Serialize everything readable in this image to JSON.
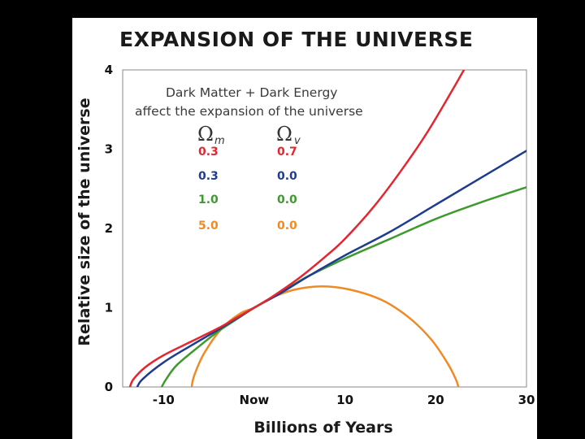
{
  "chart_data": {
    "type": "line",
    "title": "Expansion of the Universe",
    "title_display": "EXPANSION OF THE UNIVERSE",
    "xlabel": "Billions of Years",
    "ylabel": "Relative size of the universe",
    "xlim": [
      -14.5,
      30
    ],
    "ylim": [
      0,
      4
    ],
    "x_ticks": [
      {
        "value": -10,
        "label": "-10"
      },
      {
        "value": 0,
        "label": "Now"
      },
      {
        "value": 10,
        "label": "10"
      },
      {
        "value": 20,
        "label": "20"
      },
      {
        "value": 30,
        "label": "30"
      }
    ],
    "y_ticks": [
      {
        "value": 0,
        "label": "0"
      },
      {
        "value": 1,
        "label": "1"
      },
      {
        "value": 2,
        "label": "2"
      },
      {
        "value": 3,
        "label": "3"
      },
      {
        "value": 4,
        "label": "4"
      }
    ],
    "annotation": [
      "Dark Matter + Dark Energy",
      "affect the expansion of the universe"
    ],
    "legend_headers": [
      {
        "symbol": "Ω",
        "subscript": "m"
      },
      {
        "symbol": "Ω",
        "subscript": "v"
      }
    ],
    "series": [
      {
        "name": "0.3 / 0.7",
        "omega_m": "0.3",
        "omega_v": "0.7",
        "color": "#e3262f",
        "points": [
          [
            -13.7,
            0
          ],
          [
            -13.3,
            0.1
          ],
          [
            -12,
            0.25
          ],
          [
            -10,
            0.4
          ],
          [
            -7,
            0.57
          ],
          [
            -4,
            0.74
          ],
          [
            -2,
            0.87
          ],
          [
            0,
            1
          ],
          [
            2,
            1.14
          ],
          [
            5,
            1.38
          ],
          [
            8,
            1.66
          ],
          [
            10,
            1.87
          ],
          [
            13,
            2.25
          ],
          [
            16,
            2.7
          ],
          [
            19,
            3.2
          ],
          [
            22,
            3.78
          ],
          [
            23.5,
            4.08
          ]
        ]
      },
      {
        "name": "0.3 / 0.0",
        "omega_m": "0.3",
        "omega_v": "0.0",
        "color": "#1f3d8f",
        "points": [
          [
            -12.9,
            0
          ],
          [
            -12.3,
            0.1
          ],
          [
            -10,
            0.31
          ],
          [
            -7,
            0.52
          ],
          [
            -4,
            0.72
          ],
          [
            -2,
            0.86
          ],
          [
            0,
            1
          ],
          [
            3,
            1.19
          ],
          [
            6,
            1.4
          ],
          [
            10,
            1.66
          ],
          [
            15,
            1.96
          ],
          [
            20,
            2.3
          ],
          [
            25,
            2.64
          ],
          [
            30,
            2.98
          ]
        ]
      },
      {
        "name": "1.0 / 0.0",
        "omega_m": "1.0",
        "omega_v": "0.0",
        "color": "#3e9a2e",
        "points": [
          [
            -10.2,
            0
          ],
          [
            -9.7,
            0.1
          ],
          [
            -8.5,
            0.28
          ],
          [
            -6,
            0.52
          ],
          [
            -4,
            0.7
          ],
          [
            -2,
            0.85
          ],
          [
            0,
            1
          ],
          [
            3,
            1.2
          ],
          [
            6,
            1.4
          ],
          [
            10,
            1.62
          ],
          [
            15,
            1.87
          ],
          [
            20,
            2.12
          ],
          [
            25,
            2.33
          ],
          [
            30,
            2.52
          ]
        ]
      },
      {
        "name": "5.0 / 0.0",
        "omega_m": "5.0",
        "omega_v": "0.0",
        "color": "#f08a24",
        "points": [
          [
            -6.9,
            0
          ],
          [
            -6.6,
            0.15
          ],
          [
            -5.5,
            0.43
          ],
          [
            -3.5,
            0.75
          ],
          [
            -1.5,
            0.93
          ],
          [
            0,
            1
          ],
          [
            2,
            1.13
          ],
          [
            4.5,
            1.23
          ],
          [
            7.5,
            1.27
          ],
          [
            10.5,
            1.23
          ],
          [
            14,
            1.1
          ],
          [
            17,
            0.88
          ],
          [
            19.5,
            0.6
          ],
          [
            21.3,
            0.3
          ],
          [
            22.2,
            0.1
          ],
          [
            22.5,
            0
          ]
        ]
      }
    ]
  }
}
